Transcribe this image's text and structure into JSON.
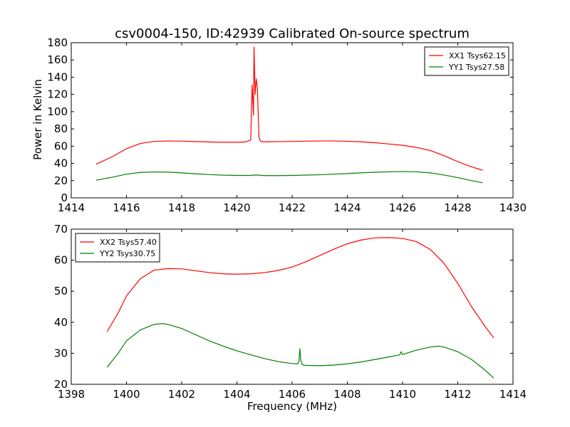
{
  "figure": {
    "title": "csv0004-150, ID:42939 Calibrated On-source spectrum",
    "ylabel": "Power in Kelvin",
    "xlabel": "Frequency (MHz)"
  },
  "chart_data": [
    {
      "type": "line",
      "title": "csv0004-150, ID:42939 Calibrated On-source spectrum",
      "xlabel": "",
      "ylabel": "Power in Kelvin",
      "xlim": [
        1414,
        1430
      ],
      "ylim": [
        0,
        180
      ],
      "xticks": [
        1414,
        1416,
        1418,
        1420,
        1422,
        1424,
        1426,
        1428,
        1430
      ],
      "yticks": [
        0,
        20,
        40,
        60,
        80,
        100,
        120,
        140,
        160,
        180
      ],
      "legend_position": "top-right",
      "series": [
        {
          "name": "XX1 Tsys62.15",
          "color": "#ff0000",
          "x": [
            1414.9,
            1415.5,
            1416.0,
            1416.5,
            1417.0,
            1417.5,
            1418.0,
            1418.5,
            1419.0,
            1419.5,
            1420.0,
            1420.3,
            1420.5,
            1420.55,
            1420.6,
            1420.62,
            1420.66,
            1420.7,
            1420.74,
            1420.78,
            1420.8,
            1420.85,
            1420.9,
            1421.0,
            1421.5,
            1422.0,
            1422.5,
            1423.0,
            1423.5,
            1424.0,
            1424.5,
            1425.0,
            1425.5,
            1426.0,
            1426.5,
            1427.0,
            1427.5,
            1428.0,
            1428.5,
            1428.9
          ],
          "values": [
            39,
            48,
            57,
            63,
            65.5,
            66,
            65.8,
            65.3,
            64.8,
            64.5,
            64.5,
            64.8,
            67,
            131,
            96,
            175,
            120,
            138,
            128,
            90,
            70,
            66,
            65,
            65,
            65.2,
            65.5,
            65.8,
            66,
            66,
            65.7,
            65,
            64,
            62.5,
            61,
            58.5,
            55,
            49,
            42,
            36,
            32
          ]
        },
        {
          "name": "YY1 Tsys27.58",
          "color": "#008000",
          "x": [
            1414.9,
            1415.5,
            1416.0,
            1416.5,
            1417.0,
            1417.5,
            1418.0,
            1418.5,
            1419.0,
            1419.5,
            1420.0,
            1420.5,
            1420.7,
            1421.0,
            1421.5,
            1422.0,
            1422.5,
            1423.0,
            1423.5,
            1424.0,
            1424.5,
            1425.0,
            1425.5,
            1426.0,
            1426.5,
            1427.0,
            1427.5,
            1428.0,
            1428.5,
            1428.9
          ],
          "values": [
            20.5,
            24,
            27.5,
            29.5,
            30,
            29.8,
            29,
            28,
            27,
            26.3,
            26,
            26,
            26.5,
            25.8,
            25.8,
            26,
            26.4,
            26.8,
            27.5,
            28.2,
            29,
            29.7,
            30.2,
            30.5,
            30.2,
            29,
            26.5,
            23.5,
            20,
            17.5
          ]
        }
      ]
    },
    {
      "type": "line",
      "title": "",
      "xlabel": "Frequency (MHz)",
      "ylabel": "",
      "xlim": [
        1398,
        1414
      ],
      "ylim": [
        20,
        70
      ],
      "xticks": [
        1398,
        1400,
        1402,
        1404,
        1406,
        1408,
        1410,
        1412,
        1414
      ],
      "yticks": [
        20,
        30,
        40,
        50,
        60,
        70
      ],
      "legend_position": "top-left",
      "series": [
        {
          "name": "XX2 Tsys57.40",
          "color": "#ff0000",
          "x": [
            1399.3,
            1399.7,
            1400.0,
            1400.5,
            1401.0,
            1401.5,
            1402.0,
            1402.5,
            1403.0,
            1403.5,
            1404.0,
            1404.5,
            1405.0,
            1405.5,
            1406.0,
            1406.5,
            1407.0,
            1407.5,
            1408.0,
            1408.5,
            1409.0,
            1409.5,
            1410.0,
            1410.5,
            1411.0,
            1411.5,
            1412.0,
            1412.5,
            1413.0,
            1413.3
          ],
          "values": [
            37,
            43,
            48.5,
            54,
            56.8,
            57.3,
            57.2,
            56.6,
            56,
            55.6,
            55.5,
            55.6,
            56,
            56.7,
            57.8,
            59.5,
            61.5,
            63.5,
            65.3,
            66.5,
            67.2,
            67.3,
            67,
            66,
            63.5,
            59,
            52.5,
            45,
            38.5,
            35
          ]
        },
        {
          "name": "YY2 Tsys30.75",
          "color": "#008000",
          "x": [
            1399.3,
            1399.7,
            1400.0,
            1400.5,
            1401.0,
            1401.3,
            1401.5,
            1402.0,
            1402.5,
            1403.0,
            1403.5,
            1404.0,
            1404.5,
            1405.0,
            1405.5,
            1406.0,
            1406.2,
            1406.25,
            1406.28,
            1406.31,
            1406.35,
            1406.45,
            1407.0,
            1407.5,
            1408.0,
            1408.5,
            1409.0,
            1409.5,
            1409.9,
            1409.95,
            1410.0,
            1410.5,
            1411.0,
            1411.3,
            1411.5,
            1412.0,
            1412.5,
            1413.0,
            1413.3
          ],
          "values": [
            25.5,
            30,
            34,
            37.5,
            39.3,
            39.6,
            39.3,
            38,
            36,
            34,
            32.3,
            30.8,
            29.5,
            28.3,
            27.3,
            26.7,
            26.6,
            27.5,
            31.5,
            28,
            26.5,
            26.1,
            26,
            26.2,
            26.6,
            27.2,
            28,
            28.8,
            29.5,
            30.5,
            29.6,
            31,
            32,
            32.3,
            32,
            30.5,
            28,
            24.5,
            22
          ]
        }
      ]
    }
  ]
}
